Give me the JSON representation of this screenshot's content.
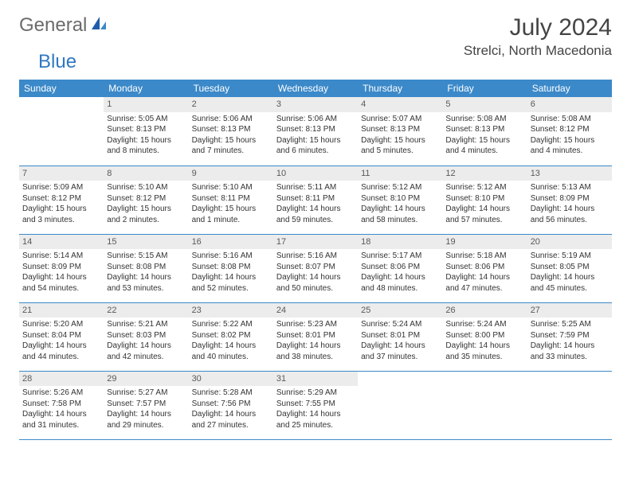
{
  "brand": {
    "word1": "General",
    "word2": "Blue"
  },
  "title": "July 2024",
  "location": "Strelci, North Macedonia",
  "colors": {
    "header_bg": "#3b89c9",
    "header_text": "#ffffff",
    "daynum_bg": "#ececec",
    "daynum_text": "#595959",
    "rule": "#3b89c9",
    "logo_gray": "#6b6b6b",
    "logo_blue": "#2f78c2"
  },
  "day_headers": [
    "Sunday",
    "Monday",
    "Tuesday",
    "Wednesday",
    "Thursday",
    "Friday",
    "Saturday"
  ],
  "weeks": [
    [
      null,
      {
        "n": "1",
        "sr": "5:05 AM",
        "ss": "8:13 PM",
        "dl": "15 hours and 8 minutes."
      },
      {
        "n": "2",
        "sr": "5:06 AM",
        "ss": "8:13 PM",
        "dl": "15 hours and 7 minutes."
      },
      {
        "n": "3",
        "sr": "5:06 AM",
        "ss": "8:13 PM",
        "dl": "15 hours and 6 minutes."
      },
      {
        "n": "4",
        "sr": "5:07 AM",
        "ss": "8:13 PM",
        "dl": "15 hours and 5 minutes."
      },
      {
        "n": "5",
        "sr": "5:08 AM",
        "ss": "8:13 PM",
        "dl": "15 hours and 4 minutes."
      },
      {
        "n": "6",
        "sr": "5:08 AM",
        "ss": "8:12 PM",
        "dl": "15 hours and 4 minutes."
      }
    ],
    [
      {
        "n": "7",
        "sr": "5:09 AM",
        "ss": "8:12 PM",
        "dl": "15 hours and 3 minutes."
      },
      {
        "n": "8",
        "sr": "5:10 AM",
        "ss": "8:12 PM",
        "dl": "15 hours and 2 minutes."
      },
      {
        "n": "9",
        "sr": "5:10 AM",
        "ss": "8:11 PM",
        "dl": "15 hours and 1 minute."
      },
      {
        "n": "10",
        "sr": "5:11 AM",
        "ss": "8:11 PM",
        "dl": "14 hours and 59 minutes."
      },
      {
        "n": "11",
        "sr": "5:12 AM",
        "ss": "8:10 PM",
        "dl": "14 hours and 58 minutes."
      },
      {
        "n": "12",
        "sr": "5:12 AM",
        "ss": "8:10 PM",
        "dl": "14 hours and 57 minutes."
      },
      {
        "n": "13",
        "sr": "5:13 AM",
        "ss": "8:09 PM",
        "dl": "14 hours and 56 minutes."
      }
    ],
    [
      {
        "n": "14",
        "sr": "5:14 AM",
        "ss": "8:09 PM",
        "dl": "14 hours and 54 minutes."
      },
      {
        "n": "15",
        "sr": "5:15 AM",
        "ss": "8:08 PM",
        "dl": "14 hours and 53 minutes."
      },
      {
        "n": "16",
        "sr": "5:16 AM",
        "ss": "8:08 PM",
        "dl": "14 hours and 52 minutes."
      },
      {
        "n": "17",
        "sr": "5:16 AM",
        "ss": "8:07 PM",
        "dl": "14 hours and 50 minutes."
      },
      {
        "n": "18",
        "sr": "5:17 AM",
        "ss": "8:06 PM",
        "dl": "14 hours and 48 minutes."
      },
      {
        "n": "19",
        "sr": "5:18 AM",
        "ss": "8:06 PM",
        "dl": "14 hours and 47 minutes."
      },
      {
        "n": "20",
        "sr": "5:19 AM",
        "ss": "8:05 PM",
        "dl": "14 hours and 45 minutes."
      }
    ],
    [
      {
        "n": "21",
        "sr": "5:20 AM",
        "ss": "8:04 PM",
        "dl": "14 hours and 44 minutes."
      },
      {
        "n": "22",
        "sr": "5:21 AM",
        "ss": "8:03 PM",
        "dl": "14 hours and 42 minutes."
      },
      {
        "n": "23",
        "sr": "5:22 AM",
        "ss": "8:02 PM",
        "dl": "14 hours and 40 minutes."
      },
      {
        "n": "24",
        "sr": "5:23 AM",
        "ss": "8:01 PM",
        "dl": "14 hours and 38 minutes."
      },
      {
        "n": "25",
        "sr": "5:24 AM",
        "ss": "8:01 PM",
        "dl": "14 hours and 37 minutes."
      },
      {
        "n": "26",
        "sr": "5:24 AM",
        "ss": "8:00 PM",
        "dl": "14 hours and 35 minutes."
      },
      {
        "n": "27",
        "sr": "5:25 AM",
        "ss": "7:59 PM",
        "dl": "14 hours and 33 minutes."
      }
    ],
    [
      {
        "n": "28",
        "sr": "5:26 AM",
        "ss": "7:58 PM",
        "dl": "14 hours and 31 minutes."
      },
      {
        "n": "29",
        "sr": "5:27 AM",
        "ss": "7:57 PM",
        "dl": "14 hours and 29 minutes."
      },
      {
        "n": "30",
        "sr": "5:28 AM",
        "ss": "7:56 PM",
        "dl": "14 hours and 27 minutes."
      },
      {
        "n": "31",
        "sr": "5:29 AM",
        "ss": "7:55 PM",
        "dl": "14 hours and 25 minutes."
      },
      null,
      null,
      null
    ]
  ],
  "labels": {
    "sunrise": "Sunrise: ",
    "sunset": "Sunset: ",
    "daylight": "Daylight: "
  }
}
